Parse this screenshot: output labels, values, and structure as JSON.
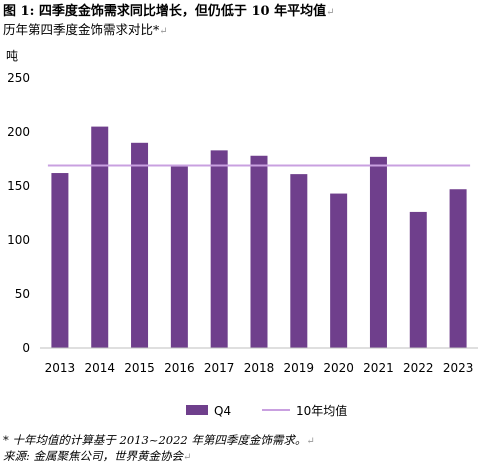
{
  "header": {
    "title_prefix": "图 1:",
    "title_text": "四季度金饰需求同比增长，但仍低于",
    "title_num": "10",
    "title_suffix": "年平均值",
    "subtitle": "历年第四季度金饰需求对比*",
    "return_mark": "↵"
  },
  "footnotes": {
    "note": "* 十年均值的计算基于 2013~2022 年第四季度金饰需求。",
    "source": "来源: 金属聚焦公司，世界黄金协会"
  },
  "colors": {
    "bar": "#6f3f8c",
    "avg_line": "#c9a0e0",
    "axis": "#bfbfbf",
    "grid": "#d9d9d9"
  },
  "chart_data": {
    "type": "bar",
    "title": "",
    "ylabel": "吨",
    "xlabel": "",
    "ylim": [
      0,
      250
    ],
    "yticks": [
      "0",
      "50",
      "100",
      "150",
      "200",
      "250"
    ],
    "categories": [
      "2013",
      "2014",
      "2015",
      "2016",
      "2017",
      "2018",
      "2019",
      "2020",
      "2021",
      "2022",
      "2023"
    ],
    "series": [
      {
        "name": "Q4",
        "values": [
          162,
          205,
          190,
          168,
          183,
          178,
          161,
          143,
          177,
          126,
          147
        ]
      }
    ],
    "reference_lines": [
      {
        "name": "10年均值",
        "value": 169
      }
    ],
    "legend_position": "bottom",
    "grid": false
  }
}
